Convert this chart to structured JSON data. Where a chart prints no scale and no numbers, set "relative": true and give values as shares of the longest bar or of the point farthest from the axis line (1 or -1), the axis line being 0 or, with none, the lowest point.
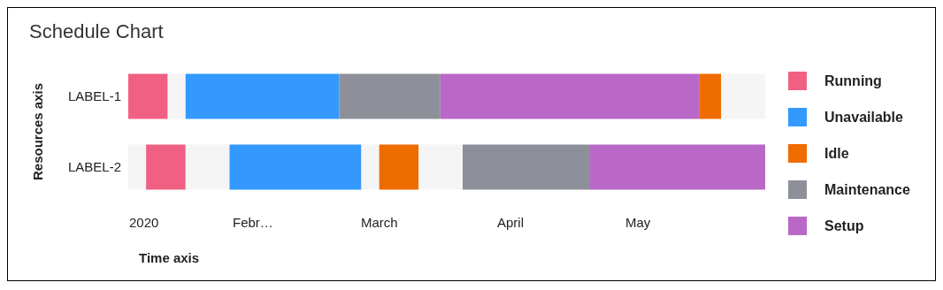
{
  "chart_data": {
    "type": "bar",
    "orientation": "horizontal",
    "stacked": true,
    "relative": true,
    "title": "Schedule Chart",
    "xlabel": "Time axis",
    "ylabel": "Resources axis",
    "categories": [
      "LABEL-1",
      "LABEL-2"
    ],
    "annotations": [
      "2020",
      "Febr…",
      "March",
      "April",
      "May"
    ],
    "legend": "right",
    "grid": false,
    "series": [
      {
        "color": "#f5f5f5",
        "values": [
          null,
          0.028
        ]
      },
      {
        "name": "Running",
        "color": "#f06082",
        "values": [
          0.062,
          0.062
        ]
      },
      {
        "color": "#f5f5f5",
        "values": [
          0.028,
          0.069
        ]
      },
      {
        "name": "Unavailable",
        "color": "#3399ff",
        "values": [
          0.241,
          0.207
        ]
      },
      {
        "color": "#f5f5f5",
        "values": [
          null,
          0.028
        ]
      },
      {
        "name": "Idle",
        "color": "#ef6c00",
        "values": [
          null,
          0.062
        ]
      },
      {
        "color": "#f5f5f5",
        "values": [
          null,
          0.069
        ]
      },
      {
        "name": "Maintenance",
        "color": "#8e9099",
        "values": [
          0.159,
          0.2
        ]
      },
      {
        "name": "Setup",
        "color": "#ba68c8",
        "values": [
          0.407,
          0.275
        ]
      },
      {
        "color": "#ef6c00",
        "values": [
          0.034,
          null
        ]
      },
      {
        "color": "#f5f5f5",
        "values": [
          0.069,
          null
        ]
      }
    ]
  }
}
